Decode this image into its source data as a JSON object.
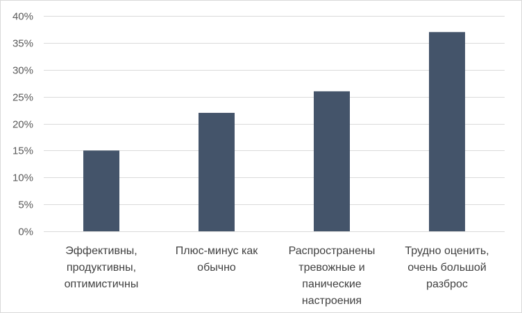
{
  "chart_data": {
    "type": "bar",
    "title": "",
    "xlabel": "",
    "ylabel": "",
    "categories": [
      "Эффективны, продуктивны, оптимистичны",
      "Плюс-минус как обычно",
      "Распространены тревожные и панические настроения",
      "Трудно оценить, очень большой разброс"
    ],
    "category_lines": [
      [
        "Эффективны,",
        "продуктивны,",
        "оптимистичны"
      ],
      [
        "Плюс-минус как",
        "обычно"
      ],
      [
        "Распространены",
        "тревожные и",
        "панические",
        "настроения"
      ],
      [
        "Трудно оценить,",
        "очень большой",
        "разброс"
      ]
    ],
    "values": [
      15,
      22,
      26,
      37
    ],
    "ylim": [
      0,
      40
    ],
    "yticks": [
      0,
      5,
      10,
      15,
      20,
      25,
      30,
      35,
      40
    ],
    "ytick_labels": [
      "0%",
      "5%",
      "10%",
      "15%",
      "20%",
      "25%",
      "30%",
      "35%",
      "40%"
    ],
    "grid": true,
    "legend": "none",
    "colors": {
      "bar": "#44546a",
      "grid": "#d9d9d9"
    }
  }
}
